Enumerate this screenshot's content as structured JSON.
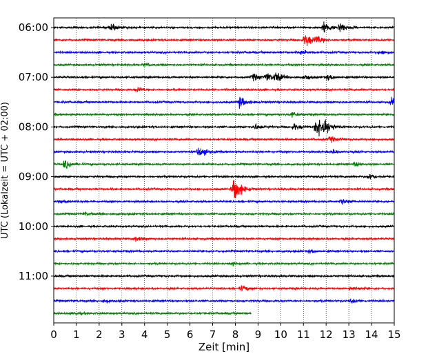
{
  "chart_data": {
    "type": "line",
    "title": "",
    "xlabel": "Zeit  [min]",
    "ylabel": "UTC (Lokalzeit = UTC + 02:00)",
    "xlim": [
      0,
      15
    ],
    "x_ticks": [
      0,
      1,
      2,
      3,
      4,
      5,
      6,
      7,
      8,
      9,
      10,
      11,
      12,
      13,
      14,
      15
    ],
    "y_tick_labels": [
      "06:00",
      "07:00",
      "08:00",
      "09:00",
      "10:00",
      "11:00"
    ],
    "grid": "vertical dotted",
    "row_minutes": 15,
    "rows_per_hour": 4,
    "color_cycle": [
      "#000000",
      "#ff0000",
      "#0000ff",
      "#008000"
    ],
    "traces": [
      {
        "start": "06:00",
        "events": [
          {
            "t": 2.5,
            "amp": 0.6
          },
          {
            "t": 11.9,
            "amp": 0.8
          },
          {
            "t": 12.6,
            "amp": 0.7
          }
        ]
      },
      {
        "start": "06:15",
        "events": [
          {
            "t": 11.1,
            "amp": 1.0
          },
          {
            "t": 11.6,
            "amp": 0.5
          }
        ]
      },
      {
        "start": "06:30",
        "events": [
          {
            "t": 10.9,
            "amp": 0.3
          },
          {
            "t": 14.4,
            "amp": 0.3
          }
        ]
      },
      {
        "start": "06:45",
        "events": [
          {
            "t": 4.0,
            "amp": 0.2
          }
        ]
      },
      {
        "start": "07:00",
        "events": [
          {
            "t": 8.8,
            "amp": 0.5
          },
          {
            "t": 9.4,
            "amp": 0.6
          },
          {
            "t": 9.8,
            "amp": 0.7
          },
          {
            "t": 11.1,
            "amp": 0.4
          },
          {
            "t": 12.1,
            "amp": 0.4
          }
        ]
      },
      {
        "start": "07:15",
        "events": [
          {
            "t": 3.7,
            "amp": 0.3
          }
        ]
      },
      {
        "start": "07:30",
        "events": [
          {
            "t": 8.2,
            "amp": 0.8
          },
          {
            "t": 14.9,
            "amp": 0.6
          }
        ]
      },
      {
        "start": "07:45",
        "events": [
          {
            "t": 10.5,
            "amp": 0.3
          }
        ]
      },
      {
        "start": "08:00",
        "events": [
          {
            "t": 8.9,
            "amp": 0.4
          },
          {
            "t": 10.6,
            "amp": 0.5
          },
          {
            "t": 11.6,
            "amp": 1.6
          },
          {
            "t": 11.9,
            "amp": 1.1
          }
        ]
      },
      {
        "start": "08:15",
        "events": [
          {
            "t": 12.2,
            "amp": 0.4
          }
        ]
      },
      {
        "start": "08:30",
        "events": [
          {
            "t": 6.4,
            "amp": 0.8
          },
          {
            "t": 12.3,
            "amp": 0.3
          }
        ]
      },
      {
        "start": "08:45",
        "events": [
          {
            "t": 0.5,
            "amp": 0.6
          },
          {
            "t": 13.3,
            "amp": 0.3
          }
        ]
      },
      {
        "start": "09:00",
        "events": [
          {
            "t": 13.9,
            "amp": 0.4
          }
        ]
      },
      {
        "start": "09:15",
        "events": [
          {
            "t": 7.9,
            "amp": 0.5
          },
          {
            "t": 8.0,
            "amp": 1.5
          }
        ]
      },
      {
        "start": "09:30",
        "events": [
          {
            "t": 0.3,
            "amp": 0.3
          },
          {
            "t": 12.7,
            "amp": 0.4
          }
        ]
      },
      {
        "start": "09:45",
        "events": [
          {
            "t": 1.4,
            "amp": 0.2
          }
        ]
      },
      {
        "start": "10:00",
        "events": []
      },
      {
        "start": "10:15",
        "events": [
          {
            "t": 3.6,
            "amp": 0.3
          }
        ]
      },
      {
        "start": "10:30",
        "events": [
          {
            "t": 11.3,
            "amp": 0.3
          }
        ]
      },
      {
        "start": "10:45",
        "events": [
          {
            "t": 7.9,
            "amp": 0.2
          }
        ]
      },
      {
        "start": "11:00",
        "events": []
      },
      {
        "start": "11:15",
        "events": [
          {
            "t": 8.3,
            "amp": 0.4
          },
          {
            "t": 13.1,
            "amp": 0.3
          }
        ]
      },
      {
        "start": "11:30",
        "events": [
          {
            "t": 2.2,
            "amp": 0.3
          },
          {
            "t": 13.1,
            "amp": 0.3
          }
        ]
      },
      {
        "start": "11:45",
        "events": [
          {
            "t": 1.0,
            "amp": 0.2
          }
        ],
        "end": 8.7
      }
    ]
  }
}
